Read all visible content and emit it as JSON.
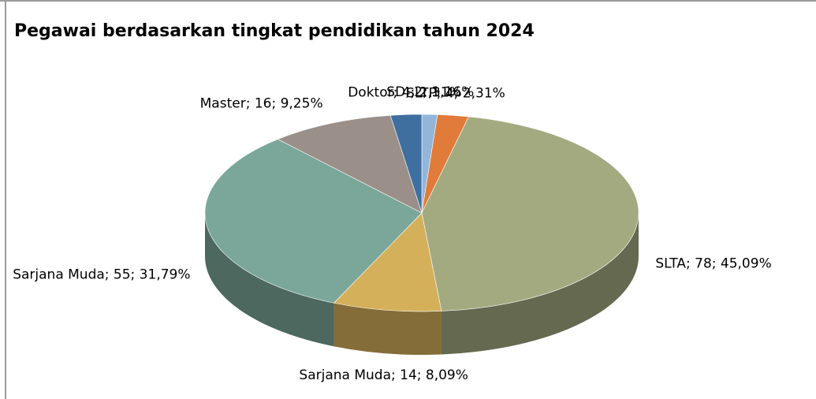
{
  "chart_data": {
    "type": "pie3d",
    "title": "Pegawai berdasarkan tingkat pendidikan tahun 2024",
    "values": [
      2,
      4,
      78,
      14,
      55,
      16,
      4
    ],
    "value_labels": [
      "SD; 2; 1,16%",
      "SLTP; 4; 2,31%",
      "SLTA; 78; 45,09%",
      "Sarjana Muda; 14; 8,09%",
      "Sarjana Muda; 55; 31,79%",
      "Master; 16; 9,25%",
      "Doktor; 4; 2,31%"
    ],
    "colors": [
      "#93b5da",
      "#e07b3a",
      "#a3aa80",
      "#d5b05b",
      "#7aa79a",
      "#9b8f89",
      "#3f6f9e"
    ]
  }
}
